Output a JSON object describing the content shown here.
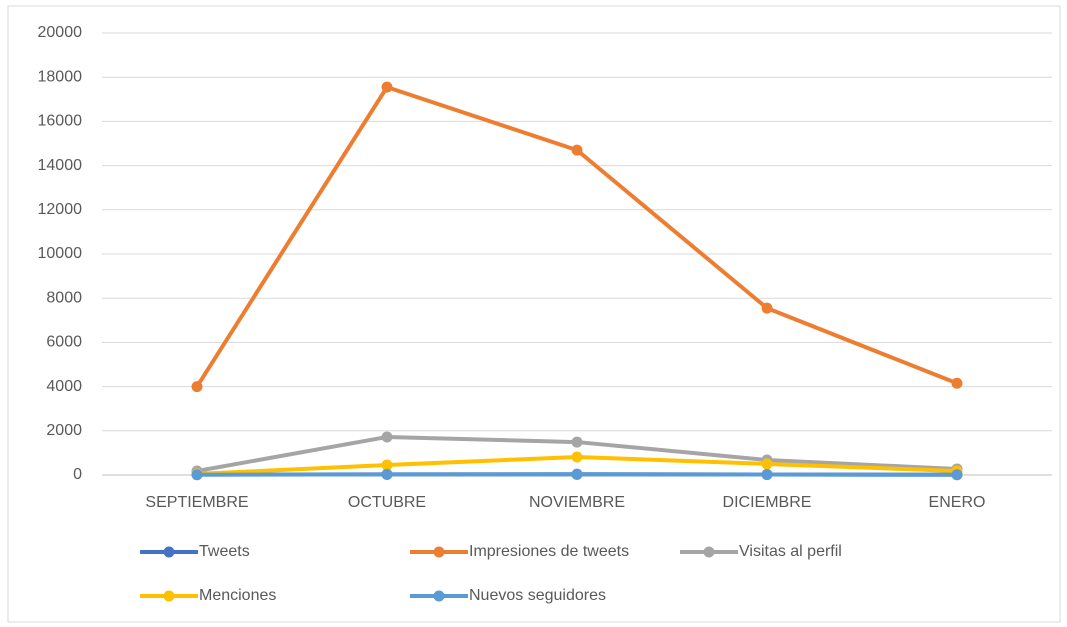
{
  "chart_data": {
    "type": "line",
    "categories": [
      "SEPTIEMBRE",
      "OCTUBRE",
      "NOVIEMBRE",
      "DICIEMBRE",
      "ENERO"
    ],
    "series": [
      {
        "name": "Tweets",
        "color": "#4472c4",
        "values": [
          20,
          30,
          30,
          25,
          15
        ]
      },
      {
        "name": "Impresiones de tweets",
        "color": "#ed7d31",
        "values": [
          4000,
          17550,
          14700,
          7550,
          4150
        ]
      },
      {
        "name": "Visitas al perfil",
        "color": "#a5a5a5",
        "values": [
          180,
          1720,
          1490,
          680,
          270
        ]
      },
      {
        "name": "Menciones",
        "color": "#ffc000",
        "values": [
          50,
          450,
          815,
          500,
          180
        ]
      },
      {
        "name": "Nuevos seguidores",
        "color": "#5b9bd5",
        "values": [
          10,
          30,
          40,
          20,
          10
        ]
      }
    ],
    "ylim": [
      0,
      20000
    ],
    "yticks": [
      0,
      2000,
      4000,
      6000,
      8000,
      10000,
      12000,
      14000,
      16000,
      18000,
      20000
    ],
    "grid": true,
    "legend": "bottom"
  }
}
